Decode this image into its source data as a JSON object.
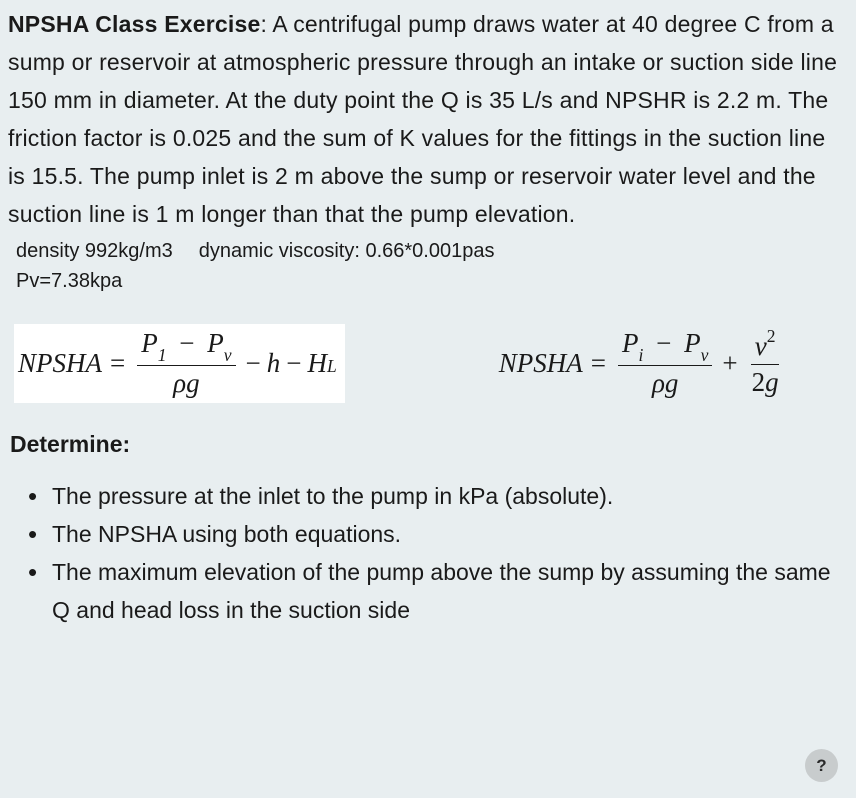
{
  "colors": {
    "background": "#e8eef0",
    "text": "#1a1a1a",
    "equation_bg": "#ffffff",
    "help_bg": "#c8cccd"
  },
  "problem": {
    "title": "NPSHA Class Exercise",
    "body": ": A centrifugal pump draws water at 40 degree C from a sump or reservoir at atmospheric pressure through an intake or suction side line 150 mm in diameter. At the duty point the Q is 35 L/s and NPSHR is 2.2 m. The friction factor is 0.025 and the sum of K values for the fittings in the suction line is 15.5. The pump inlet is 2 m above the sump or reservoir water level and the suction line is 1 m longer than that the pump elevation."
  },
  "params": {
    "density": "density 992kg/m3",
    "viscosity": "dynamic viscosity: 0.66*0.001pas",
    "pv": "Pv=7.38kpa"
  },
  "equations": {
    "eq1": {
      "lhs": "NPSHA",
      "num_a": "P",
      "num_a_sub": "1",
      "num_op": "−",
      "num_b": "P",
      "num_b_sub": "v",
      "den": "ρg",
      "tail_op1": "−",
      "tail_a": "h",
      "tail_op2": "−",
      "tail_b": "H",
      "tail_b_sub": "L"
    },
    "eq2": {
      "lhs": "NPSHA",
      "num_a": "P",
      "num_a_sub": "i",
      "num_op": "−",
      "num_b": "P",
      "num_b_sub": "v",
      "den": "ρg",
      "plus": "+",
      "v_num": "v",
      "v_exp": "2",
      "v_den": "2g"
    }
  },
  "determine": {
    "heading": "Determine:",
    "items": [
      "The pressure at the inlet to the pump in kPa (absolute).",
      "The NPSHA using both equations.",
      "The maximum elevation of the pump above the sump by assuming the same Q and head loss in the suction side"
    ]
  },
  "help": {
    "label": "?"
  }
}
